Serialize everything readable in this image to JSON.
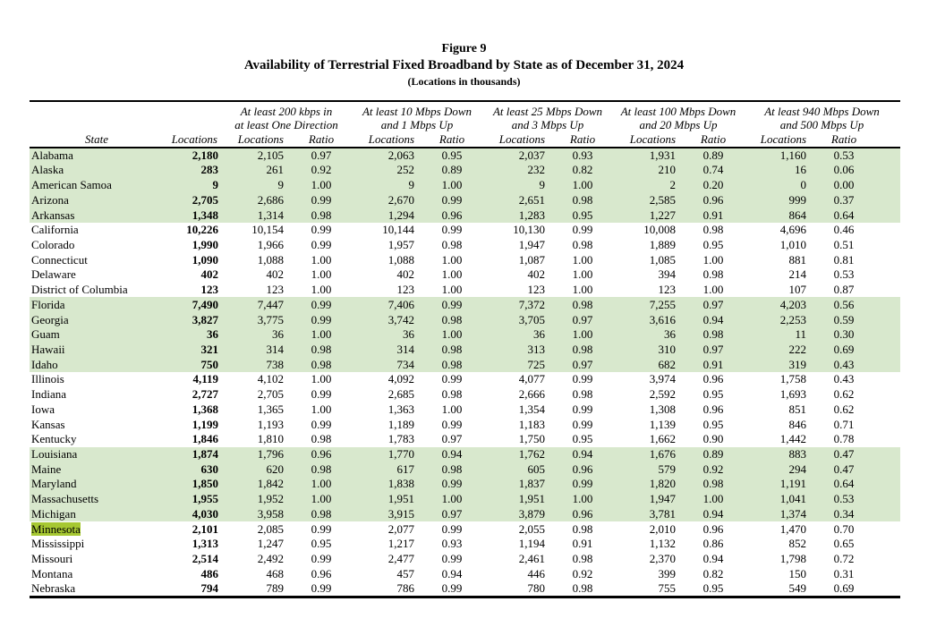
{
  "title": {
    "figure": "Figure 9",
    "main": "Availability of Terrestrial Fixed Broadband by State as of December 31, 2024",
    "sub": "(Locations in thousands)"
  },
  "colors": {
    "row_band_green": "#d8e8cd",
    "find_highlight": "#a6c832"
  },
  "table": {
    "col_state": "State",
    "col_locations": "Locations",
    "sub_locations": "Locations",
    "sub_ratio": "Ratio",
    "groups": [
      {
        "line1": "At least 200 kbps in",
        "line2": "at least One Direction"
      },
      {
        "line1": "At least 10 Mbps Down",
        "line2": "and 1 Mbps Up"
      },
      {
        "line1": "At least 25 Mbps Down",
        "line2": "and 3 Mbps Up"
      },
      {
        "line1": "At least 100 Mbps Down",
        "line2": "and 20 Mbps Up"
      },
      {
        "line1": "At least 940 Mbps Down",
        "line2": "and 500 Mbps Up"
      }
    ],
    "rows": [
      {
        "state": "Alabama",
        "highlight": false,
        "total": "2,180",
        "cells": [
          "2,105",
          "0.97",
          "2,063",
          "0.95",
          "2,037",
          "0.93",
          "1,931",
          "0.89",
          "1,160",
          "0.53"
        ]
      },
      {
        "state": "Alaska",
        "highlight": false,
        "total": "283",
        "cells": [
          "261",
          "0.92",
          "252",
          "0.89",
          "232",
          "0.82",
          "210",
          "0.74",
          "16",
          "0.06"
        ]
      },
      {
        "state": "American Samoa",
        "highlight": false,
        "total": "9",
        "cells": [
          "9",
          "1.00",
          "9",
          "1.00",
          "9",
          "1.00",
          "2",
          "0.20",
          "0",
          "0.00"
        ]
      },
      {
        "state": "Arizona",
        "highlight": false,
        "total": "2,705",
        "cells": [
          "2,686",
          "0.99",
          "2,670",
          "0.99",
          "2,651",
          "0.98",
          "2,585",
          "0.96",
          "999",
          "0.37"
        ]
      },
      {
        "state": "Arkansas",
        "highlight": false,
        "total": "1,348",
        "cells": [
          "1,314",
          "0.98",
          "1,294",
          "0.96",
          "1,283",
          "0.95",
          "1,227",
          "0.91",
          "864",
          "0.64"
        ]
      },
      {
        "state": "California",
        "highlight": false,
        "total": "10,226",
        "cells": [
          "10,154",
          "0.99",
          "10,144",
          "0.99",
          "10,130",
          "0.99",
          "10,008",
          "0.98",
          "4,696",
          "0.46"
        ]
      },
      {
        "state": "Colorado",
        "highlight": false,
        "total": "1,990",
        "cells": [
          "1,966",
          "0.99",
          "1,957",
          "0.98",
          "1,947",
          "0.98",
          "1,889",
          "0.95",
          "1,010",
          "0.51"
        ]
      },
      {
        "state": "Connecticut",
        "highlight": false,
        "total": "1,090",
        "cells": [
          "1,088",
          "1.00",
          "1,088",
          "1.00",
          "1,087",
          "1.00",
          "1,085",
          "1.00",
          "881",
          "0.81"
        ]
      },
      {
        "state": "Delaware",
        "highlight": false,
        "total": "402",
        "cells": [
          "402",
          "1.00",
          "402",
          "1.00",
          "402",
          "1.00",
          "394",
          "0.98",
          "214",
          "0.53"
        ]
      },
      {
        "state": "District of Columbia",
        "highlight": false,
        "total": "123",
        "cells": [
          "123",
          "1.00",
          "123",
          "1.00",
          "123",
          "1.00",
          "123",
          "1.00",
          "107",
          "0.87"
        ]
      },
      {
        "state": "Florida",
        "highlight": false,
        "total": "7,490",
        "cells": [
          "7,447",
          "0.99",
          "7,406",
          "0.99",
          "7,372",
          "0.98",
          "7,255",
          "0.97",
          "4,203",
          "0.56"
        ]
      },
      {
        "state": "Georgia",
        "highlight": false,
        "total": "3,827",
        "cells": [
          "3,775",
          "0.99",
          "3,742",
          "0.98",
          "3,705",
          "0.97",
          "3,616",
          "0.94",
          "2,253",
          "0.59"
        ]
      },
      {
        "state": "Guam",
        "highlight": false,
        "total": "36",
        "cells": [
          "36",
          "1.00",
          "36",
          "1.00",
          "36",
          "1.00",
          "36",
          "0.98",
          "11",
          "0.30"
        ]
      },
      {
        "state": "Hawaii",
        "highlight": false,
        "total": "321",
        "cells": [
          "314",
          "0.98",
          "314",
          "0.98",
          "313",
          "0.98",
          "310",
          "0.97",
          "222",
          "0.69"
        ]
      },
      {
        "state": "Idaho",
        "highlight": false,
        "total": "750",
        "cells": [
          "738",
          "0.98",
          "734",
          "0.98",
          "725",
          "0.97",
          "682",
          "0.91",
          "319",
          "0.43"
        ]
      },
      {
        "state": "Illinois",
        "highlight": false,
        "total": "4,119",
        "cells": [
          "4,102",
          "1.00",
          "4,092",
          "0.99",
          "4,077",
          "0.99",
          "3,974",
          "0.96",
          "1,758",
          "0.43"
        ]
      },
      {
        "state": "Indiana",
        "highlight": false,
        "total": "2,727",
        "cells": [
          "2,705",
          "0.99",
          "2,685",
          "0.98",
          "2,666",
          "0.98",
          "2,592",
          "0.95",
          "1,693",
          "0.62"
        ]
      },
      {
        "state": "Iowa",
        "highlight": false,
        "total": "1,368",
        "cells": [
          "1,365",
          "1.00",
          "1,363",
          "1.00",
          "1,354",
          "0.99",
          "1,308",
          "0.96",
          "851",
          "0.62"
        ]
      },
      {
        "state": "Kansas",
        "highlight": false,
        "total": "1,199",
        "cells": [
          "1,193",
          "0.99",
          "1,189",
          "0.99",
          "1,183",
          "0.99",
          "1,139",
          "0.95",
          "846",
          "0.71"
        ]
      },
      {
        "state": "Kentucky",
        "highlight": false,
        "total": "1,846",
        "cells": [
          "1,810",
          "0.98",
          "1,783",
          "0.97",
          "1,750",
          "0.95",
          "1,662",
          "0.90",
          "1,442",
          "0.78"
        ]
      },
      {
        "state": "Louisiana",
        "highlight": false,
        "total": "1,874",
        "cells": [
          "1,796",
          "0.96",
          "1,770",
          "0.94",
          "1,762",
          "0.94",
          "1,676",
          "0.89",
          "883",
          "0.47"
        ]
      },
      {
        "state": "Maine",
        "highlight": false,
        "total": "630",
        "cells": [
          "620",
          "0.98",
          "617",
          "0.98",
          "605",
          "0.96",
          "579",
          "0.92",
          "294",
          "0.47"
        ]
      },
      {
        "state": "Maryland",
        "highlight": false,
        "total": "1,850",
        "cells": [
          "1,842",
          "1.00",
          "1,838",
          "0.99",
          "1,837",
          "0.99",
          "1,820",
          "0.98",
          "1,191",
          "0.64"
        ]
      },
      {
        "state": "Massachusetts",
        "highlight": false,
        "total": "1,955",
        "cells": [
          "1,952",
          "1.00",
          "1,951",
          "1.00",
          "1,951",
          "1.00",
          "1,947",
          "1.00",
          "1,041",
          "0.53"
        ]
      },
      {
        "state": "Michigan",
        "highlight": false,
        "total": "4,030",
        "cells": [
          "3,958",
          "0.98",
          "3,915",
          "0.97",
          "3,879",
          "0.96",
          "3,781",
          "0.94",
          "1,374",
          "0.34"
        ]
      },
      {
        "state": "Minnesota",
        "highlight": true,
        "total": "2,101",
        "cells": [
          "2,085",
          "0.99",
          "2,077",
          "0.99",
          "2,055",
          "0.98",
          "2,010",
          "0.96",
          "1,470",
          "0.70"
        ]
      },
      {
        "state": "Mississippi",
        "highlight": false,
        "total": "1,313",
        "cells": [
          "1,247",
          "0.95",
          "1,217",
          "0.93",
          "1,194",
          "0.91",
          "1,132",
          "0.86",
          "852",
          "0.65"
        ]
      },
      {
        "state": "Missouri",
        "highlight": false,
        "total": "2,514",
        "cells": [
          "2,492",
          "0.99",
          "2,477",
          "0.99",
          "2,461",
          "0.98",
          "2,370",
          "0.94",
          "1,798",
          "0.72"
        ]
      },
      {
        "state": "Montana",
        "highlight": false,
        "total": "486",
        "cells": [
          "468",
          "0.96",
          "457",
          "0.94",
          "446",
          "0.92",
          "399",
          "0.82",
          "150",
          "0.31"
        ]
      },
      {
        "state": "Nebraska",
        "highlight": false,
        "total": "794",
        "cells": [
          "789",
          "0.99",
          "786",
          "0.99",
          "780",
          "0.98",
          "755",
          "0.95",
          "549",
          "0.69"
        ]
      }
    ]
  }
}
